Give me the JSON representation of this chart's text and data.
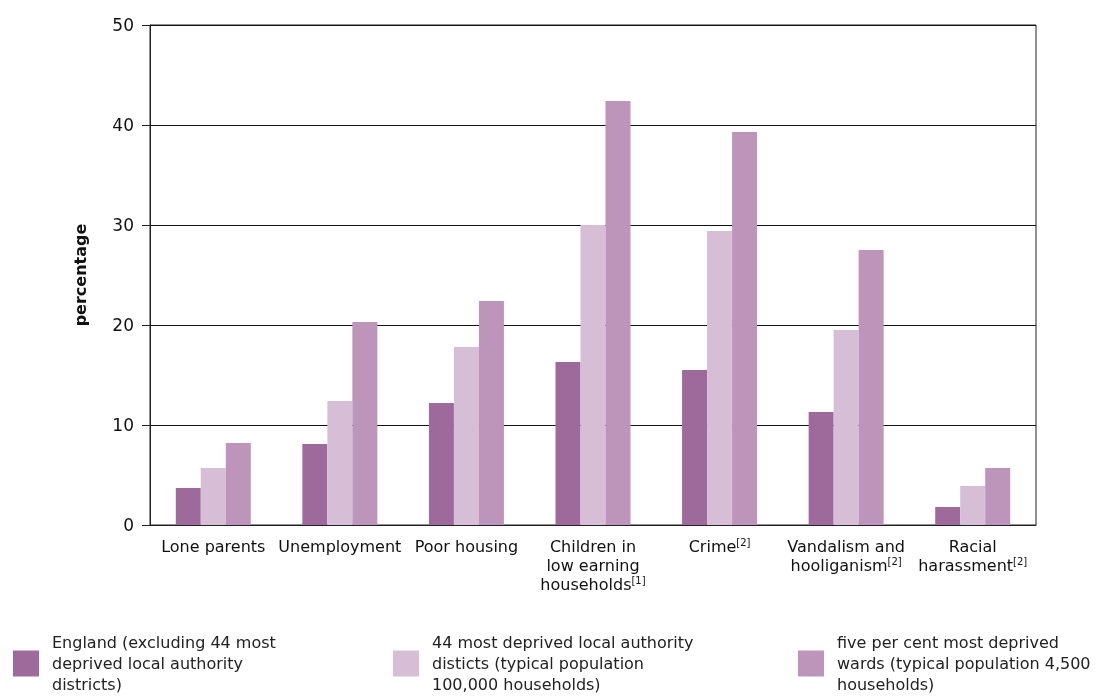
{
  "chart_data": {
    "type": "bar",
    "ylabel": "percentage",
    "categories": [
      "Lone parents",
      "Unemployment",
      "Poor housing",
      "Children in low earning households$^{[1]}$",
      "Crime$^{[2]}$",
      "Vandalism and hooliganism$^{[2]}$",
      "Racial harassment$^{[2]}$"
    ],
    "series": [
      {
        "name": "England (excluding 44 most deprived local authority districts)",
        "color": "#9e6a9c",
        "values": [
          3.7,
          8.1,
          12.2,
          16.3,
          15.5,
          11.3,
          1.8
        ]
      },
      {
        "name": "44 most deprived local authority disticts (typical population 100,000 households)",
        "color": "#d6bfd6",
        "values": [
          5.7,
          12.4,
          17.8,
          30,
          29.4,
          19.5,
          3.9
        ]
      },
      {
        "name": "five per cent most deprived wards (typical population 4,500 households)",
        "color": "#bd94ba",
        "values": [
          8.2,
          20.3,
          22.4,
          42.4,
          39.3,
          27.5,
          5.7
        ]
      }
    ],
    "ylim": [
      0,
      50
    ],
    "yticks": [
      0,
      10,
      20,
      30,
      40,
      50
    ],
    "grid": "y",
    "legend": "bottom"
  }
}
